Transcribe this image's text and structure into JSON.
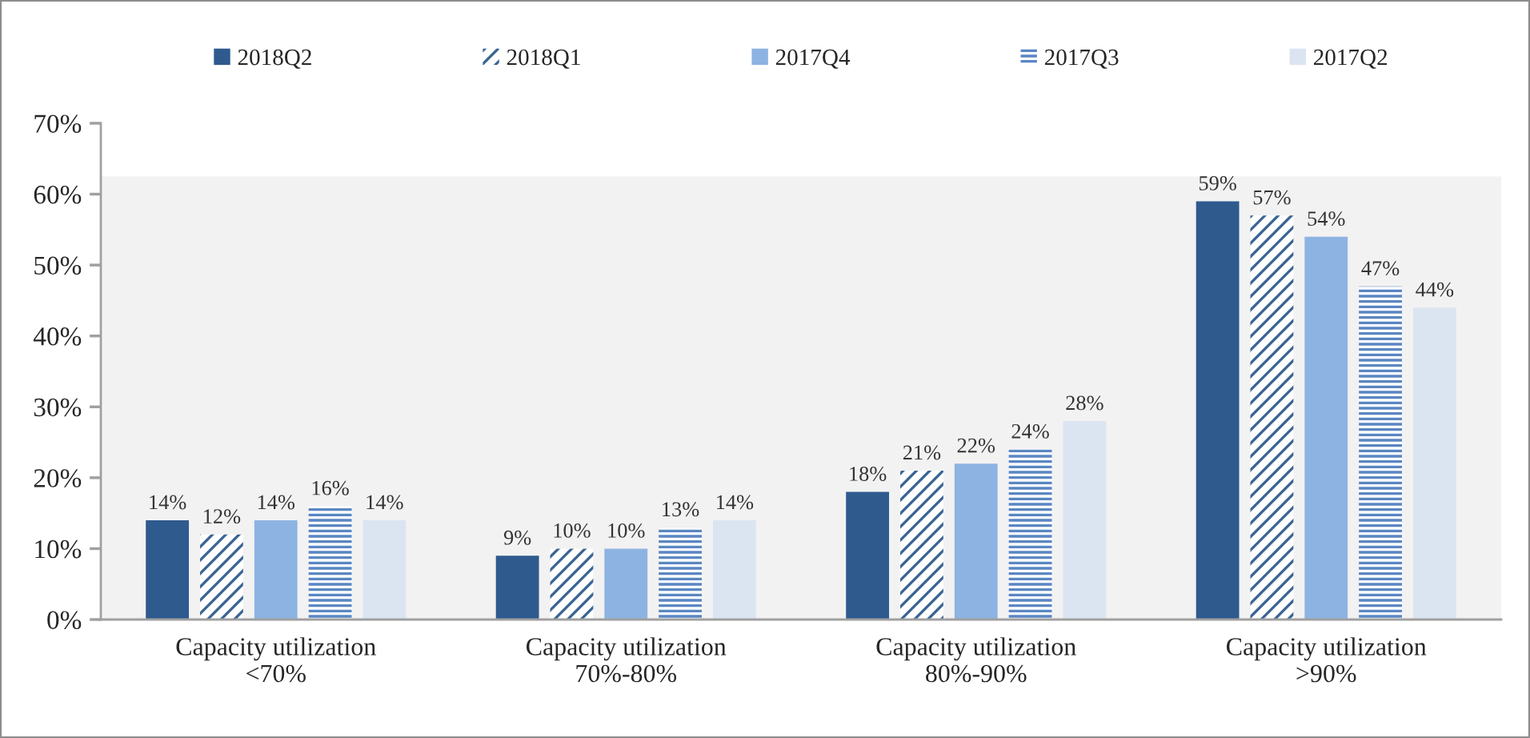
{
  "chart_data": {
    "type": "bar",
    "categories": [
      "Capacity utilization\n<70%",
      "Capacity utilization\n70%-80%",
      "Capacity utilization\n80%-90%",
      "Capacity utilization\n>90%"
    ],
    "series": [
      {
        "name": "2018Q2",
        "color": "#2e5a8e",
        "values": [
          14,
          9,
          18,
          59
        ],
        "value_labels": [
          "14%",
          "9%",
          "18%",
          "59%"
        ]
      },
      {
        "name": "2018Q1",
        "color": "#3a6494",
        "values": [
          12,
          10,
          21,
          57
        ],
        "value_labels": [
          "12%",
          "10%",
          "21%",
          "57%"
        ]
      },
      {
        "name": "2017Q4",
        "color": "#8db3e2",
        "values": [
          14,
          10,
          22,
          54
        ],
        "value_labels": [
          "14%",
          "10%",
          "22%",
          "54%"
        ]
      },
      {
        "name": "2017Q3",
        "color": "#5a86c2",
        "values": [
          16,
          13,
          24,
          47
        ],
        "value_labels": [
          "16%",
          "13%",
          "24%",
          "47%"
        ]
      },
      {
        "name": "2017Q2",
        "color": "#dbe5f1",
        "values": [
          14,
          14,
          28,
          44
        ],
        "value_labels": [
          "14%",
          "14%",
          "28%",
          "44%"
        ]
      }
    ],
    "ylim": [
      0,
      70
    ],
    "yticks": [
      {
        "value": 0,
        "label": "0%"
      },
      {
        "value": 10,
        "label": "10%"
      },
      {
        "value": 20,
        "label": "20%"
      },
      {
        "value": 30,
        "label": "30%"
      },
      {
        "value": 40,
        "label": "40%"
      },
      {
        "value": 50,
        "label": "50%"
      },
      {
        "value": 60,
        "label": "60%"
      },
      {
        "value": 70,
        "label": "70%"
      }
    ],
    "bands": [
      {
        "axis": "y",
        "from": 0,
        "to": 62.5,
        "color": "#f2f2f2"
      }
    ],
    "grid": false,
    "legend": "top"
  }
}
